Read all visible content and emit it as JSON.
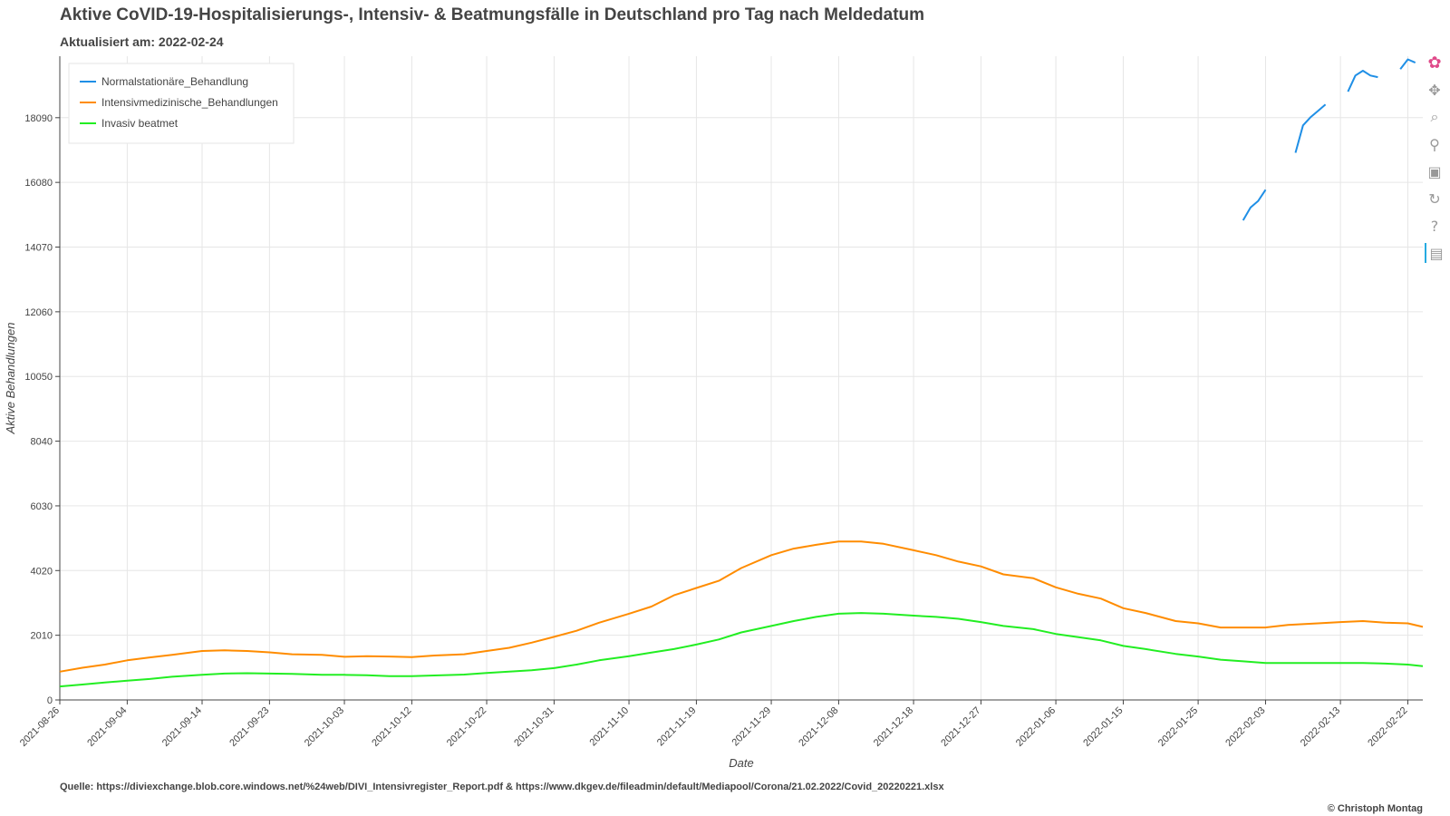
{
  "title": "Aktive CoVID-19-Hospitalisierungs-, Intensiv- & Beatmungsfälle in Deutschland pro Tag nach Meldedatum",
  "subtitle": "Aktualisiert am: 2022-02-24",
  "source": "Quelle: https://diviexchange.blob.core.windows.net/%24web/DIVI_Intensivregister_Report.pdf & https://www.dkgev.de/fileadmin/default/Mediapool/Corona/21.02.2022/Covid_20220221.xlsx",
  "copyright": "© Christoph Montag",
  "toolbar": {
    "tools": [
      "bokeh-logo-icon",
      "pan-icon",
      "box-zoom-icon",
      "wheel-zoom-icon",
      "save-icon",
      "reset-icon",
      "help-icon",
      "hover-icon"
    ]
  },
  "colors": {
    "normal": "#1f8fe6",
    "icu": "#ff8c00",
    "vent": "#22ee22",
    "grid": "#e6e6e6"
  },
  "chart_data": {
    "type": "line",
    "xlabel": "Date",
    "ylabel": "Aktive Behandlungen",
    "xlim": [
      "2021-08-26",
      "2022-02-24"
    ],
    "ylim": [
      0,
      20000
    ],
    "yticks": [
      0,
      2010,
      4020,
      6030,
      8040,
      10050,
      12060,
      14070,
      16080,
      18090
    ],
    "xticks": [
      "2021-08-26",
      "2021-09-04",
      "2021-09-14",
      "2021-09-23",
      "2021-10-03",
      "2021-10-12",
      "2021-10-22",
      "2021-10-31",
      "2021-11-10",
      "2021-11-19",
      "2021-11-29",
      "2021-12-08",
      "2021-12-18",
      "2021-12-27",
      "2022-01-06",
      "2022-01-15",
      "2022-01-25",
      "2022-02-03",
      "2022-02-13",
      "2022-02-22"
    ],
    "grid": true,
    "legend_position": "top-left",
    "series": [
      {
        "name": "Normalstationäre_Behandlung",
        "color": "#1f8fe6",
        "segments": [
          [
            [
              "2022-01-31",
              14900
            ],
            [
              "2022-02-01",
              15300
            ],
            [
              "2022-02-02",
              15500
            ],
            [
              "2022-02-03",
              15850
            ]
          ],
          [
            [
              "2022-02-07",
              17000
            ],
            [
              "2022-02-08",
              17850
            ],
            [
              "2022-02-09",
              18100
            ],
            [
              "2022-02-10",
              18300
            ],
            [
              "2022-02-11",
              18500
            ]
          ],
          [
            [
              "2022-02-14",
              18900
            ],
            [
              "2022-02-15",
              19400
            ],
            [
              "2022-02-16",
              19550
            ],
            [
              "2022-02-17",
              19400
            ],
            [
              "2022-02-18",
              19350
            ]
          ],
          [
            [
              "2022-02-21",
              19600
            ],
            [
              "2022-02-22",
              19900
            ],
            [
              "2022-02-23",
              19800
            ]
          ]
        ]
      },
      {
        "name": "Intensivmedizinische_Behandlungen",
        "color": "#ff8c00",
        "points": [
          [
            "2021-08-26",
            880
          ],
          [
            "2021-08-29",
            1000
          ],
          [
            "2021-09-01",
            1100
          ],
          [
            "2021-09-04",
            1230
          ],
          [
            "2021-09-07",
            1320
          ],
          [
            "2021-09-10",
            1400
          ],
          [
            "2021-09-14",
            1520
          ],
          [
            "2021-09-17",
            1540
          ],
          [
            "2021-09-20",
            1520
          ],
          [
            "2021-09-23",
            1480
          ],
          [
            "2021-09-26",
            1420
          ],
          [
            "2021-09-30",
            1400
          ],
          [
            "2021-10-03",
            1340
          ],
          [
            "2021-10-06",
            1360
          ],
          [
            "2021-10-09",
            1350
          ],
          [
            "2021-10-12",
            1330
          ],
          [
            "2021-10-15",
            1380
          ],
          [
            "2021-10-19",
            1420
          ],
          [
            "2021-10-22",
            1520
          ],
          [
            "2021-10-25",
            1620
          ],
          [
            "2021-10-28",
            1780
          ],
          [
            "2021-10-31",
            1960
          ],
          [
            "2021-11-03",
            2150
          ],
          [
            "2021-11-06",
            2400
          ],
          [
            "2021-11-10",
            2680
          ],
          [
            "2021-11-13",
            2900
          ],
          [
            "2021-11-16",
            3250
          ],
          [
            "2021-11-19",
            3480
          ],
          [
            "2021-11-22",
            3700
          ],
          [
            "2021-11-25",
            4100
          ],
          [
            "2021-11-29",
            4500
          ],
          [
            "2021-12-02",
            4700
          ],
          [
            "2021-12-05",
            4820
          ],
          [
            "2021-12-08",
            4920
          ],
          [
            "2021-12-11",
            4920
          ],
          [
            "2021-12-14",
            4850
          ],
          [
            "2021-12-18",
            4650
          ],
          [
            "2021-12-21",
            4500
          ],
          [
            "2021-12-24",
            4300
          ],
          [
            "2021-12-27",
            4150
          ],
          [
            "2021-12-30",
            3900
          ],
          [
            "2022-01-03",
            3780
          ],
          [
            "2022-01-06",
            3500
          ],
          [
            "2022-01-09",
            3300
          ],
          [
            "2022-01-12",
            3150
          ],
          [
            "2022-01-15",
            2850
          ],
          [
            "2022-01-18",
            2700
          ],
          [
            "2022-01-22",
            2450
          ],
          [
            "2022-01-25",
            2380
          ],
          [
            "2022-01-28",
            2250
          ],
          [
            "2022-01-31",
            2250
          ],
          [
            "2022-02-03",
            2250
          ],
          [
            "2022-02-06",
            2330
          ],
          [
            "2022-02-10",
            2380
          ],
          [
            "2022-02-13",
            2420
          ],
          [
            "2022-02-16",
            2450
          ],
          [
            "2022-02-19",
            2400
          ],
          [
            "2022-02-22",
            2380
          ],
          [
            "2022-02-24",
            2270
          ]
        ]
      },
      {
        "name": "Invasiv beatmet",
        "color": "#22ee22",
        "points": [
          [
            "2021-08-26",
            420
          ],
          [
            "2021-08-29",
            480
          ],
          [
            "2021-09-01",
            540
          ],
          [
            "2021-09-04",
            600
          ],
          [
            "2021-09-07",
            650
          ],
          [
            "2021-09-10",
            720
          ],
          [
            "2021-09-14",
            780
          ],
          [
            "2021-09-17",
            820
          ],
          [
            "2021-09-20",
            830
          ],
          [
            "2021-09-23",
            820
          ],
          [
            "2021-09-26",
            810
          ],
          [
            "2021-09-30",
            780
          ],
          [
            "2021-10-03",
            780
          ],
          [
            "2021-10-06",
            770
          ],
          [
            "2021-10-09",
            740
          ],
          [
            "2021-10-12",
            740
          ],
          [
            "2021-10-15",
            760
          ],
          [
            "2021-10-19",
            790
          ],
          [
            "2021-10-22",
            840
          ],
          [
            "2021-10-25",
            880
          ],
          [
            "2021-10-28",
            920
          ],
          [
            "2021-10-31",
            990
          ],
          [
            "2021-11-03",
            1100
          ],
          [
            "2021-11-06",
            1230
          ],
          [
            "2021-11-10",
            1360
          ],
          [
            "2021-11-13",
            1470
          ],
          [
            "2021-11-16",
            1580
          ],
          [
            "2021-11-19",
            1720
          ],
          [
            "2021-11-22",
            1880
          ],
          [
            "2021-11-25",
            2100
          ],
          [
            "2021-11-29",
            2300
          ],
          [
            "2021-12-02",
            2450
          ],
          [
            "2021-12-05",
            2580
          ],
          [
            "2021-12-08",
            2680
          ],
          [
            "2021-12-11",
            2700
          ],
          [
            "2021-12-14",
            2680
          ],
          [
            "2021-12-18",
            2620
          ],
          [
            "2021-12-21",
            2580
          ],
          [
            "2021-12-24",
            2520
          ],
          [
            "2021-12-27",
            2420
          ],
          [
            "2021-12-30",
            2300
          ],
          [
            "2022-01-03",
            2200
          ],
          [
            "2022-01-06",
            2050
          ],
          [
            "2022-01-09",
            1950
          ],
          [
            "2022-01-12",
            1850
          ],
          [
            "2022-01-15",
            1680
          ],
          [
            "2022-01-18",
            1580
          ],
          [
            "2022-01-22",
            1430
          ],
          [
            "2022-01-25",
            1350
          ],
          [
            "2022-01-28",
            1250
          ],
          [
            "2022-01-31",
            1200
          ],
          [
            "2022-02-03",
            1150
          ],
          [
            "2022-02-06",
            1150
          ],
          [
            "2022-02-10",
            1150
          ],
          [
            "2022-02-13",
            1150
          ],
          [
            "2022-02-16",
            1150
          ],
          [
            "2022-02-19",
            1130
          ],
          [
            "2022-02-22",
            1100
          ],
          [
            "2022-02-24",
            1050
          ]
        ]
      }
    ]
  }
}
